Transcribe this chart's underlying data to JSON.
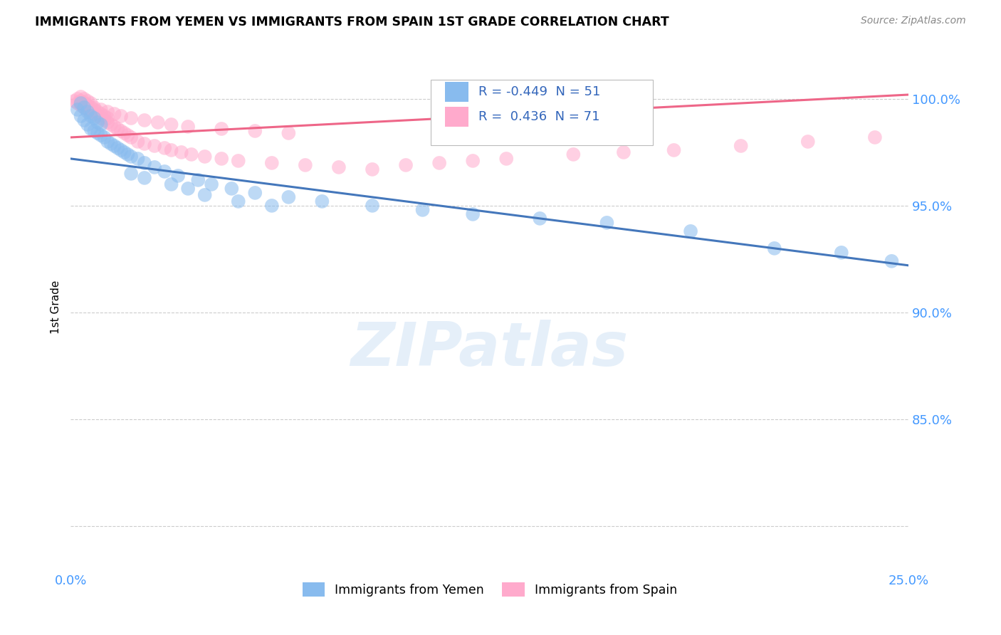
{
  "title": "IMMIGRANTS FROM YEMEN VS IMMIGRANTS FROM SPAIN 1ST GRADE CORRELATION CHART",
  "source": "Source: ZipAtlas.com",
  "ylabel": "1st Grade",
  "xlim": [
    0.0,
    0.25
  ],
  "ylim": [
    0.78,
    1.025
  ],
  "legend_r_blue": "-0.449",
  "legend_n_blue": "51",
  "legend_r_pink": "0.436",
  "legend_n_pink": "71",
  "legend_label_blue": "Immigrants from Yemen",
  "legend_label_pink": "Immigrants from Spain",
  "blue_color": "#88BBEE",
  "pink_color": "#FFAACC",
  "blue_line_color": "#4477BB",
  "pink_line_color": "#EE6688",
  "watermark": "ZIPatlas",
  "blue_line_x0": 0.0,
  "blue_line_y0": 0.972,
  "blue_line_x1": 0.25,
  "blue_line_y1": 0.922,
  "pink_line_x0": 0.0,
  "pink_line_y0": 0.982,
  "pink_line_x1": 0.25,
  "pink_line_y1": 1.002,
  "blue_scatter_x": [
    0.002,
    0.003,
    0.003,
    0.004,
    0.004,
    0.005,
    0.005,
    0.006,
    0.006,
    0.007,
    0.007,
    0.008,
    0.008,
    0.009,
    0.009,
    0.01,
    0.011,
    0.012,
    0.013,
    0.014,
    0.015,
    0.016,
    0.017,
    0.018,
    0.02,
    0.022,
    0.025,
    0.028,
    0.032,
    0.038,
    0.042,
    0.048,
    0.055,
    0.065,
    0.075,
    0.09,
    0.105,
    0.12,
    0.14,
    0.16,
    0.185,
    0.21,
    0.23,
    0.245,
    0.018,
    0.022,
    0.03,
    0.035,
    0.04,
    0.05,
    0.06
  ],
  "blue_scatter_y": [
    0.995,
    0.992,
    0.998,
    0.99,
    0.996,
    0.988,
    0.994,
    0.986,
    0.992,
    0.985,
    0.991,
    0.984,
    0.989,
    0.983,
    0.988,
    0.982,
    0.98,
    0.979,
    0.978,
    0.977,
    0.976,
    0.975,
    0.974,
    0.973,
    0.972,
    0.97,
    0.968,
    0.966,
    0.964,
    0.962,
    0.96,
    0.958,
    0.956,
    0.954,
    0.952,
    0.95,
    0.948,
    0.946,
    0.944,
    0.942,
    0.938,
    0.93,
    0.928,
    0.924,
    0.965,
    0.963,
    0.96,
    0.958,
    0.955,
    0.952,
    0.95
  ],
  "pink_scatter_x": [
    0.001,
    0.002,
    0.002,
    0.003,
    0.003,
    0.003,
    0.004,
    0.004,
    0.004,
    0.005,
    0.005,
    0.005,
    0.006,
    0.006,
    0.006,
    0.007,
    0.007,
    0.008,
    0.008,
    0.009,
    0.009,
    0.01,
    0.01,
    0.011,
    0.011,
    0.012,
    0.013,
    0.014,
    0.015,
    0.016,
    0.017,
    0.018,
    0.02,
    0.022,
    0.025,
    0.028,
    0.03,
    0.033,
    0.036,
    0.04,
    0.045,
    0.05,
    0.06,
    0.07,
    0.08,
    0.09,
    0.1,
    0.11,
    0.12,
    0.13,
    0.15,
    0.165,
    0.18,
    0.2,
    0.22,
    0.24,
    0.003,
    0.005,
    0.007,
    0.009,
    0.011,
    0.013,
    0.015,
    0.018,
    0.022,
    0.026,
    0.03,
    0.035,
    0.045,
    0.055,
    0.065
  ],
  "pink_scatter_y": [
    0.999,
    0.998,
    1.0,
    0.997,
    0.999,
    1.001,
    0.996,
    0.998,
    1.0,
    0.995,
    0.997,
    0.999,
    0.994,
    0.996,
    0.998,
    0.993,
    0.995,
    0.992,
    0.994,
    0.991,
    0.993,
    0.99,
    0.992,
    0.989,
    0.991,
    0.988,
    0.987,
    0.986,
    0.985,
    0.984,
    0.983,
    0.982,
    0.98,
    0.979,
    0.978,
    0.977,
    0.976,
    0.975,
    0.974,
    0.973,
    0.972,
    0.971,
    0.97,
    0.969,
    0.968,
    0.967,
    0.969,
    0.97,
    0.971,
    0.972,
    0.974,
    0.975,
    0.976,
    0.978,
    0.98,
    0.982,
    0.998,
    0.997,
    0.996,
    0.995,
    0.994,
    0.993,
    0.992,
    0.991,
    0.99,
    0.989,
    0.988,
    0.987,
    0.986,
    0.985,
    0.984
  ]
}
